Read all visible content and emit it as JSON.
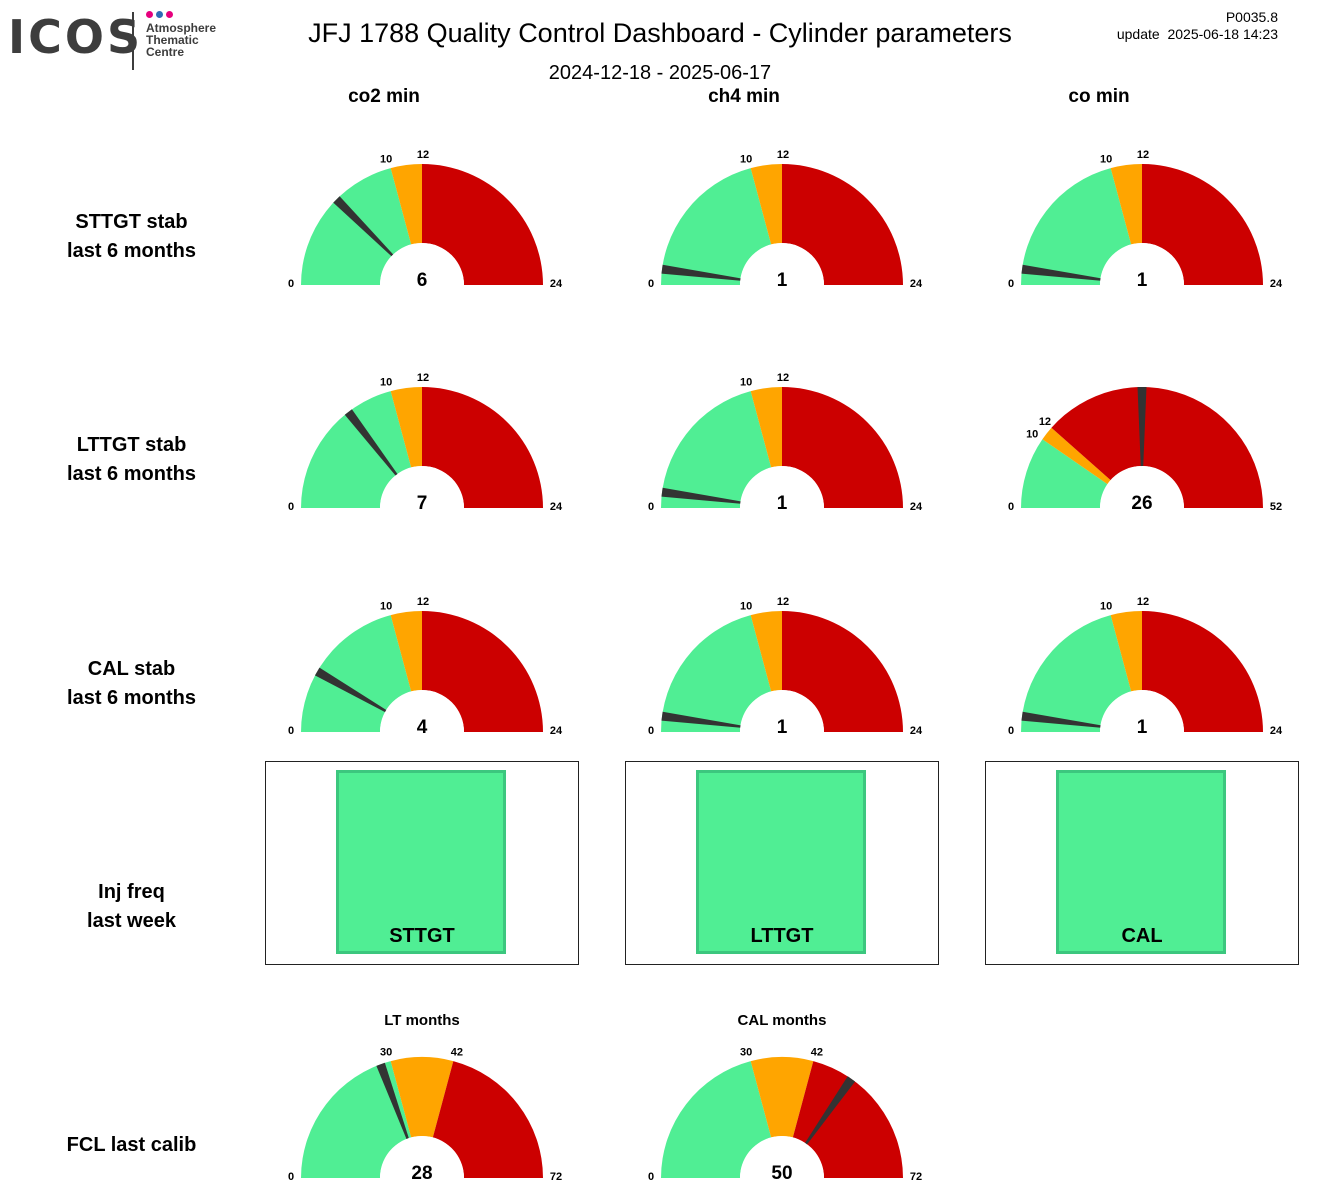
{
  "header": {
    "logo_text": "ICOS",
    "logo_subtitle": [
      "Atmosphere",
      "Thematic",
      "Centre"
    ],
    "logo_dot_colors": [
      "#e6007e",
      "#2f6db5",
      "#e6007e"
    ],
    "title": "JFJ 1788 Quality Control Dashboard - Cylinder parameters",
    "date_range": "2024-12-18 - 2025-06-17",
    "version": "P0035.8",
    "update": "update  2025-06-18 14:23"
  },
  "columns": [
    "co2 min",
    "ch4 min",
    "co min"
  ],
  "rows": {
    "sttgt": [
      "STTGT stab",
      "last 6 months"
    ],
    "lttgt": [
      "LTTGT stab",
      "last 6 months"
    ],
    "cal": [
      "CAL stab",
      "last 6 months"
    ],
    "inj": [
      "Inj freq",
      "last week"
    ],
    "fcl": [
      "FCL last calib"
    ]
  },
  "colors": {
    "green": "#50ee94",
    "orange": "#ffa500",
    "red": "#cc0000",
    "needle": "#333333",
    "inj_border": "#3cc77e"
  },
  "injection_status": [
    {
      "label": "STTGT",
      "status": "green"
    },
    {
      "label": "LTTGT",
      "status": "green"
    },
    {
      "label": "CAL",
      "status": "green"
    }
  ],
  "chart_data": [
    {
      "type": "gauge",
      "row": "STTGT stab",
      "column": "co2 min",
      "min": 0,
      "max": 24,
      "thresholds": [
        10,
        12
      ],
      "value": 6
    },
    {
      "type": "gauge",
      "row": "STTGT stab",
      "column": "ch4 min",
      "min": 0,
      "max": 24,
      "thresholds": [
        10,
        12
      ],
      "value": 1
    },
    {
      "type": "gauge",
      "row": "STTGT stab",
      "column": "co min",
      "min": 0,
      "max": 24,
      "thresholds": [
        10,
        12
      ],
      "value": 1
    },
    {
      "type": "gauge",
      "row": "LTTGT stab",
      "column": "co2 min",
      "min": 0,
      "max": 24,
      "thresholds": [
        10,
        12
      ],
      "value": 7
    },
    {
      "type": "gauge",
      "row": "LTTGT stab",
      "column": "ch4 min",
      "min": 0,
      "max": 24,
      "thresholds": [
        10,
        12
      ],
      "value": 1
    },
    {
      "type": "gauge",
      "row": "LTTGT stab",
      "column": "co min",
      "min": 0,
      "max": 52,
      "thresholds": [
        10,
        12
      ],
      "value": 26
    },
    {
      "type": "gauge",
      "row": "CAL stab",
      "column": "co2 min",
      "min": 0,
      "max": 24,
      "thresholds": [
        10,
        12
      ],
      "value": 4
    },
    {
      "type": "gauge",
      "row": "CAL stab",
      "column": "ch4 min",
      "min": 0,
      "max": 24,
      "thresholds": [
        10,
        12
      ],
      "value": 1
    },
    {
      "type": "gauge",
      "row": "CAL stab",
      "column": "co min",
      "min": 0,
      "max": 24,
      "thresholds": [
        10,
        12
      ],
      "value": 1
    },
    {
      "type": "gauge",
      "row": "FCL last calib",
      "title": "LT months",
      "min": 0,
      "max": 72,
      "thresholds": [
        30,
        42
      ],
      "value": 28
    },
    {
      "type": "gauge",
      "row": "FCL last calib",
      "title": "CAL months",
      "min": 0,
      "max": 72,
      "thresholds": [
        30,
        42
      ],
      "value": 50
    }
  ]
}
